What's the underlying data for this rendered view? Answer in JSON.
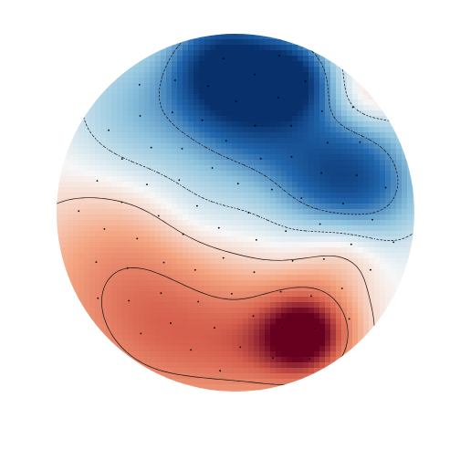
{
  "chart_data": {
    "type": "heatmap",
    "subtype": "scalp-topomap",
    "colormap": "RdBu_r",
    "colors": {
      "negative_extreme": "#08306b",
      "negative": "#2166ac",
      "neutral": "#f7f7f7",
      "positive": "#d6604d",
      "positive_extreme": "#67001f"
    },
    "grid": false,
    "legend": false,
    "contour_levels": [
      -0.6,
      -0.2,
      0.15,
      0.6
    ],
    "sensor_count": 80,
    "field_sources": [
      {
        "x": -0.05,
        "y": 0.82,
        "amp": -1.1,
        "sigma": 0.2
      },
      {
        "x": 0.3,
        "y": 0.75,
        "amp": -1.0,
        "sigma": 0.15
      },
      {
        "x": 0.1,
        "y": 0.55,
        "amp": -0.7,
        "sigma": 0.25
      },
      {
        "x": -0.5,
        "y": 0.55,
        "amp": -0.45,
        "sigma": 0.3
      },
      {
        "x": 0.7,
        "y": 0.15,
        "amp": -0.75,
        "sigma": 0.25
      },
      {
        "x": 0.45,
        "y": 0.25,
        "amp": -0.45,
        "sigma": 0.25
      },
      {
        "x": -0.2,
        "y": 0.0,
        "amp": -0.22,
        "sigma": 0.22
      },
      {
        "x": 0.4,
        "y": -0.68,
        "amp": 1.2,
        "sigma": 0.18
      },
      {
        "x": 0.1,
        "y": -0.75,
        "amp": 0.5,
        "sigma": 0.25
      },
      {
        "x": -0.6,
        "y": -0.4,
        "amp": 0.55,
        "sigma": 0.4
      },
      {
        "x": 0.6,
        "y": -0.2,
        "amp": 0.35,
        "sigma": 0.18
      },
      {
        "x": 0.75,
        "y": 0.65,
        "amp": 0.25,
        "sigma": 0.12
      },
      {
        "x": -0.35,
        "y": -0.75,
        "amp": 0.35,
        "sigma": 0.3
      }
    ]
  }
}
